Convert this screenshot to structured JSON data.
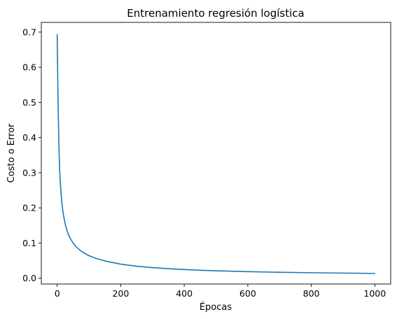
{
  "chart_data": {
    "type": "line",
    "title": "Entrenamiento regresión logística",
    "xlabel": "Épocas",
    "ylabel": "Costo o Error",
    "xlim": [
      -50,
      1050
    ],
    "ylim": [
      -0.0166,
      0.7276
    ],
    "xticks": [
      0,
      200,
      400,
      600,
      800,
      1000
    ],
    "xtick_labels": [
      "0",
      "200",
      "400",
      "600",
      "800",
      "1000"
    ],
    "yticks": [
      0.0,
      0.1,
      0.2,
      0.3,
      0.4,
      0.5,
      0.6,
      0.7
    ],
    "ytick_labels": [
      "0.0",
      "0.1",
      "0.2",
      "0.3",
      "0.4",
      "0.5",
      "0.6",
      "0.7"
    ],
    "grid": false,
    "legend": "none",
    "series": [
      {
        "color": "#1f77b4",
        "x": [
          0,
          1,
          2,
          3,
          4,
          5,
          6,
          7,
          8,
          10,
          12,
          15,
          18,
          20,
          25,
          30,
          35,
          40,
          50,
          60,
          70,
          80,
          100,
          120,
          150,
          200,
          250,
          300,
          350,
          400,
          450,
          500,
          600,
          700,
          800,
          900,
          1000
        ],
        "y": [
          0.693,
          0.62,
          0.55,
          0.49,
          0.44,
          0.395,
          0.36,
          0.33,
          0.305,
          0.27,
          0.243,
          0.212,
          0.19,
          0.178,
          0.155,
          0.138,
          0.125,
          0.115,
          0.1,
          0.089,
          0.081,
          0.074,
          0.064,
          0.057,
          0.049,
          0.04,
          0.034,
          0.03,
          0.027,
          0.0245,
          0.0225,
          0.021,
          0.0185,
          0.0168,
          0.0155,
          0.0145,
          0.0135
        ]
      }
    ]
  }
}
